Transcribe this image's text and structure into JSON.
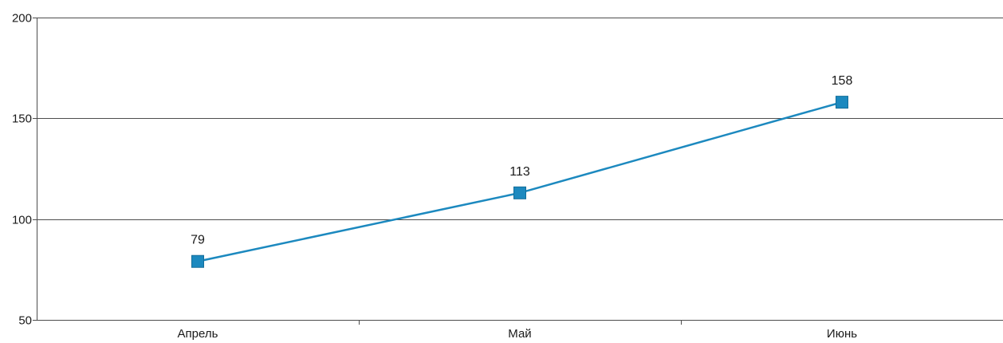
{
  "chart_data": {
    "type": "line",
    "categories": [
      "Апрель",
      "Май",
      "Июнь"
    ],
    "series": [
      {
        "values": [
          79,
          113,
          158
        ],
        "color": "#1c89bf",
        "marker": "square"
      }
    ],
    "data_labels": [
      "79",
      "113",
      "158"
    ],
    "ylim": [
      50,
      200
    ],
    "yticks": [
      50,
      100,
      150,
      200
    ],
    "ytick_labels": [
      "50",
      "100",
      "150",
      "200"
    ],
    "grid": true,
    "grid_axis": "y",
    "grid_color": "#4d4d4d",
    "title": "",
    "xlabel": "",
    "ylabel": ""
  }
}
